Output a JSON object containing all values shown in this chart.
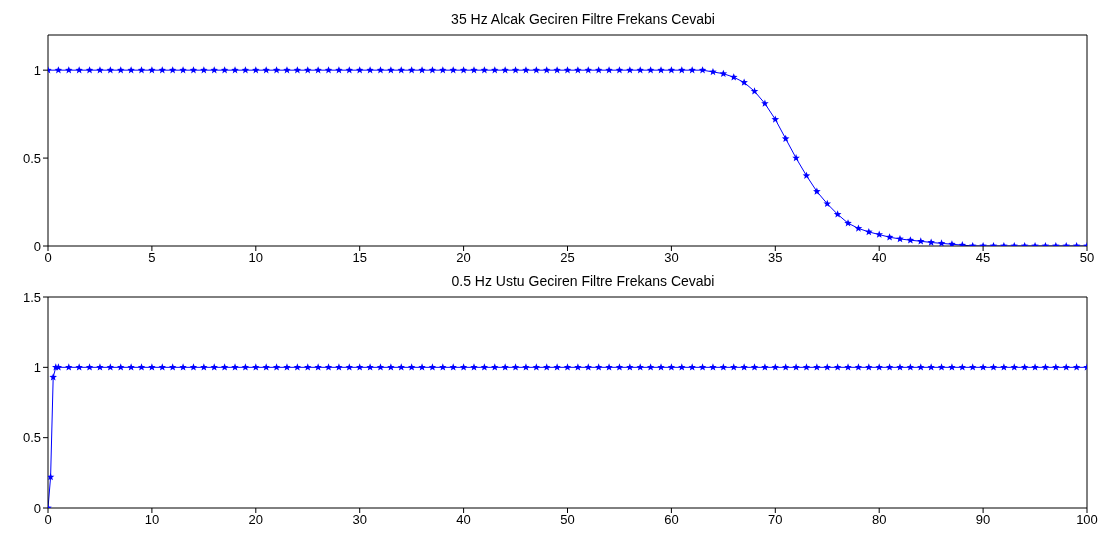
{
  "chart_data": [
    {
      "type": "line",
      "title": "35 Hz Alcak Geciren Filtre Frekans Cevabi",
      "marker": "star",
      "line_style": "solid",
      "xlim": [
        0,
        50
      ],
      "xticks": [
        0,
        5,
        10,
        15,
        20,
        25,
        30,
        35,
        40,
        45,
        50
      ],
      "ylim": [
        0,
        1.2
      ],
      "yticks": [
        0,
        0.5,
        1
      ],
      "x": [
        0,
        0.5,
        1,
        1.5,
        2,
        2.5,
        3,
        3.5,
        4,
        4.5,
        5,
        5.5,
        6,
        6.5,
        7,
        7.5,
        8,
        8.5,
        9,
        9.5,
        10,
        10.5,
        11,
        11.5,
        12,
        12.5,
        13,
        13.5,
        14,
        14.5,
        15,
        15.5,
        16,
        16.5,
        17,
        17.5,
        18,
        18.5,
        19,
        19.5,
        20,
        20.5,
        21,
        21.5,
        22,
        22.5,
        23,
        23.5,
        24,
        24.5,
        25,
        25.5,
        26,
        26.5,
        27,
        27.5,
        28,
        28.5,
        29,
        29.5,
        30,
        30.5,
        31,
        31.5,
        32,
        32.5,
        33,
        33.5,
        34,
        34.5,
        35,
        35.5,
        36,
        36.5,
        37,
        37.5,
        38,
        38.5,
        39,
        39.5,
        40,
        40.5,
        41,
        41.5,
        42,
        42.5,
        43,
        43.5,
        44,
        44.5,
        45,
        45.5,
        46,
        46.5,
        47,
        47.5,
        48,
        48.5,
        49,
        49.5,
        50
      ],
      "series": [
        {
          "color": "#0000ff",
          "values": [
            1,
            1,
            1,
            1,
            1,
            1,
            1,
            1,
            1,
            1,
            1,
            1,
            1,
            1,
            1,
            1,
            1,
            1,
            1,
            1,
            1,
            1,
            1,
            1,
            1,
            1,
            1,
            1,
            1,
            1,
            1,
            1,
            1,
            1,
            1,
            1,
            1,
            1,
            1,
            1,
            1,
            1,
            1,
            1,
            1,
            1,
            1,
            1,
            1,
            1,
            1,
            1,
            1,
            1,
            1,
            1,
            1,
            1,
            1,
            1,
            1,
            1,
            1,
            1,
            0.99,
            0.98,
            0.96,
            0.93,
            0.88,
            0.81,
            0.72,
            0.61,
            0.5,
            0.4,
            0.31,
            0.24,
            0.18,
            0.13,
            0.1,
            0.08,
            0.065,
            0.05,
            0.04,
            0.033,
            0.027,
            0.02,
            0.015,
            0.01,
            0.005,
            0,
            0,
            0,
            0,
            0,
            0,
            0,
            0,
            0,
            0,
            0,
            0
          ]
        }
      ]
    },
    {
      "type": "line",
      "title": "0.5 Hz Ustu Geciren Filtre Frekans Cevabi",
      "marker": "star",
      "line_style": "solid",
      "xlim": [
        0,
        100
      ],
      "xticks": [
        0,
        10,
        20,
        30,
        40,
        50,
        60,
        70,
        80,
        90,
        100
      ],
      "ylim": [
        0,
        1.5
      ],
      "yticks": [
        0,
        0.5,
        1,
        1.5
      ],
      "x": [
        0,
        0.25,
        0.5,
        0.75,
        1,
        2,
        3,
        4,
        5,
        6,
        7,
        8,
        9,
        10,
        11,
        12,
        13,
        14,
        15,
        16,
        17,
        18,
        19,
        20,
        21,
        22,
        23,
        24,
        25,
        26,
        27,
        28,
        29,
        30,
        31,
        32,
        33,
        34,
        35,
        36,
        37,
        38,
        39,
        40,
        41,
        42,
        43,
        44,
        45,
        46,
        47,
        48,
        49,
        50,
        51,
        52,
        53,
        54,
        55,
        56,
        57,
        58,
        59,
        60,
        61,
        62,
        63,
        64,
        65,
        66,
        67,
        68,
        69,
        70,
        71,
        72,
        73,
        74,
        75,
        76,
        77,
        78,
        79,
        80,
        81,
        82,
        83,
        84,
        85,
        86,
        87,
        88,
        89,
        90,
        91,
        92,
        93,
        94,
        95,
        96,
        97,
        98,
        99,
        100
      ],
      "series": [
        {
          "color": "#0000ff",
          "values": [
            0,
            0.22,
            0.93,
            1,
            1,
            1,
            1,
            1,
            1,
            1,
            1,
            1,
            1,
            1,
            1,
            1,
            1,
            1,
            1,
            1,
            1,
            1,
            1,
            1,
            1,
            1,
            1,
            1,
            1,
            1,
            1,
            1,
            1,
            1,
            1,
            1,
            1,
            1,
            1,
            1,
            1,
            1,
            1,
            1,
            1,
            1,
            1,
            1,
            1,
            1,
            1,
            1,
            1,
            1,
            1,
            1,
            1,
            1,
            1,
            1,
            1,
            1,
            1,
            1,
            1,
            1,
            1,
            1,
            1,
            1,
            1,
            1,
            1,
            1,
            1,
            1,
            1,
            1,
            1,
            1,
            1,
            1,
            1,
            1,
            1,
            1,
            1,
            1,
            1,
            1,
            1,
            1,
            1,
            1,
            1,
            1,
            1,
            1,
            1,
            1,
            1,
            1,
            1,
            1
          ]
        }
      ]
    }
  ]
}
